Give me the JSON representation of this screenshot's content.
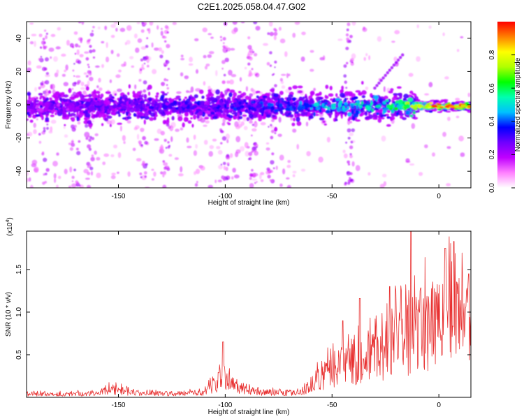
{
  "title": "C2E1.2025.058.04.47.G02",
  "colors": {
    "snr_line": "#e83030",
    "cmap": [
      "#ffffff",
      "#ff80ff",
      "#c000ff",
      "#7000ff",
      "#0000ff",
      "#00c0ff",
      "#00ffb0",
      "#00ff00",
      "#b0ff00",
      "#ffff00",
      "#ff8000",
      "#ff0000"
    ]
  },
  "chart_data": [
    {
      "type": "heatmap",
      "xlabel": "Height of straight line (km)",
      "ylabel": "Frequency (Hz)",
      "xlim": [
        -193,
        15
      ],
      "ylim": [
        -50,
        50
      ],
      "xticks": [
        -150,
        -100,
        -50,
        0
      ],
      "yticks": [
        -40,
        -20,
        0,
        20,
        40
      ],
      "colorbar": {
        "label": "Normalized spectral amplitude",
        "range": [
          0,
          1
        ],
        "ticks": [
          "0.0",
          "0.2",
          "0.4",
          "0.6",
          "0.8"
        ]
      },
      "band": {
        "center_hz": -1,
        "width_hz": [
          10,
          14
        ],
        "amplitude_profile": [
          {
            "x": -190,
            "amp": 0.25
          },
          {
            "x": -150,
            "amp": 0.3
          },
          {
            "x": -100,
            "amp": 0.35
          },
          {
            "x": -70,
            "amp": 0.42
          },
          {
            "x": -50,
            "amp": 0.5
          },
          {
            "x": -25,
            "amp": 0.55
          },
          {
            "x": -10,
            "amp": 0.75
          },
          {
            "x": 0,
            "amp": 0.95
          },
          {
            "x": 15,
            "amp": 0.9
          }
        ],
        "diagonal_feature": {
          "x": [
            -30,
            -17
          ],
          "y": [
            10,
            30
          ]
        }
      }
    },
    {
      "type": "line",
      "xlabel": "Height of straight line (km)",
      "ylabel": "SNR (10 * v/v)",
      "y_multiplier": "(x10",
      "y_multiplier_exp": "4",
      "xlim": [
        -193,
        15
      ],
      "ylim": [
        0,
        1.95
      ],
      "xticks": [
        -150,
        -100,
        -50,
        0
      ],
      "yticks": [
        "0.5",
        "1.0",
        "1.5"
      ],
      "envelope": [
        {
          "x": -193,
          "y": 0.05
        },
        {
          "x": -160,
          "y": 0.06
        },
        {
          "x": -155,
          "y": 0.14
        },
        {
          "x": -140,
          "y": 0.06
        },
        {
          "x": -110,
          "y": 0.07
        },
        {
          "x": -102,
          "y": 0.3
        },
        {
          "x": -96,
          "y": 0.2
        },
        {
          "x": -85,
          "y": 0.08
        },
        {
          "x": -65,
          "y": 0.08
        },
        {
          "x": -58,
          "y": 0.25
        },
        {
          "x": -50,
          "y": 0.45
        },
        {
          "x": -40,
          "y": 0.55
        },
        {
          "x": -30,
          "y": 0.7
        },
        {
          "x": -20,
          "y": 0.9
        },
        {
          "x": -12,
          "y": 1.05
        },
        {
          "x": -5,
          "y": 1.2
        },
        {
          "x": 5,
          "y": 1.3
        },
        {
          "x": 15,
          "y": 1.15
        }
      ],
      "peaks": [
        {
          "x": -101,
          "y": 0.65
        },
        {
          "x": -45,
          "y": 0.9
        },
        {
          "x": -37,
          "y": 1.16
        },
        {
          "x": -23,
          "y": 1.3
        },
        {
          "x": -13,
          "y": 1.95
        },
        {
          "x": 3,
          "y": 1.75
        },
        {
          "x": 7,
          "y": 1.83
        },
        {
          "x": 14,
          "y": 1.45
        }
      ]
    }
  ]
}
